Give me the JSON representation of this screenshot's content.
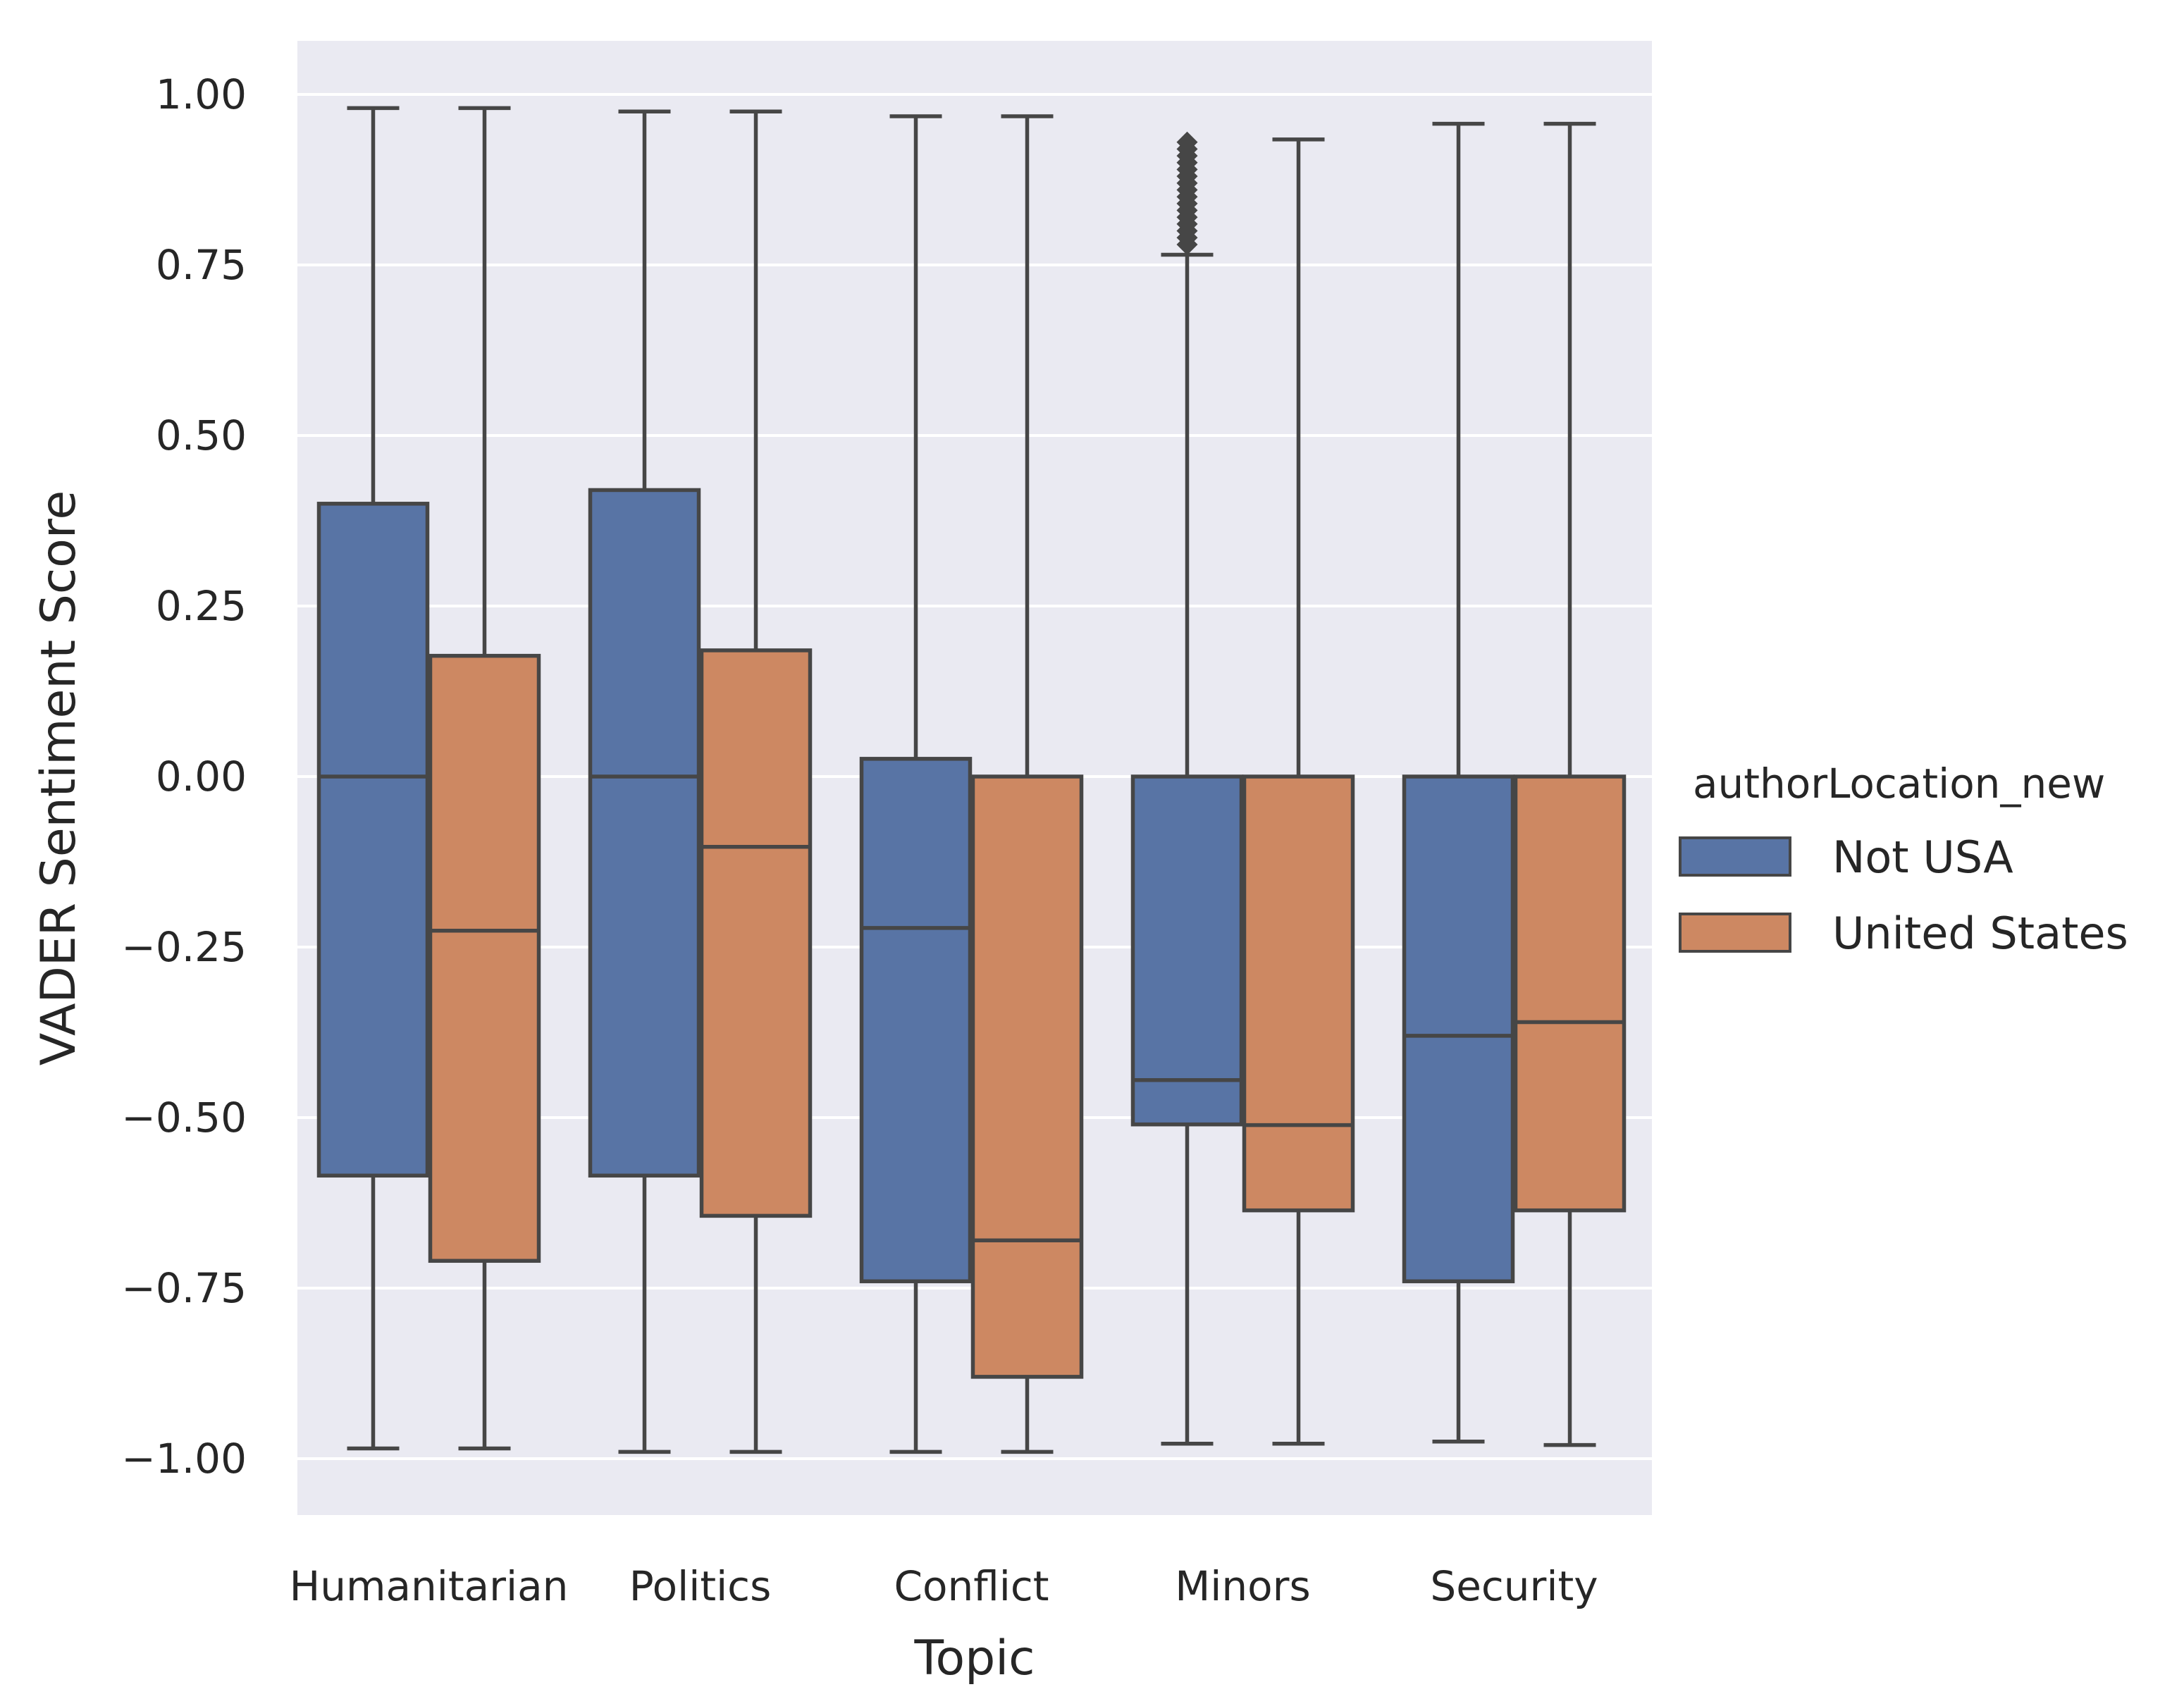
{
  "chart_data": {
    "type": "box",
    "xlabel": "Topic",
    "ylabel": "VADER Sentiment Score",
    "ylim": [
      -1.08,
      1.08
    ],
    "yticks": [
      1.0,
      0.75,
      0.5,
      0.25,
      0.0,
      -0.25,
      -0.5,
      -0.75,
      -1.0
    ],
    "ytick_labels": [
      "1.00",
      "0.75",
      "0.50",
      "0.25",
      "0.00",
      "−0.25",
      "−0.50",
      "−0.75",
      "−1.00"
    ],
    "grid": true,
    "categories": [
      "Humanitarian",
      "Politics",
      "Conflict",
      "Minors",
      "Security"
    ],
    "legend": {
      "title": "authorLocation_new",
      "placement": "right",
      "entries": [
        {
          "label": "Not USA",
          "color": "#5874a5"
        },
        {
          "label": "United States",
          "color": "#cd8862"
        }
      ]
    },
    "series": [
      {
        "color": "#5874a5",
        "boxes": [
          {
            "whislo": -0.985,
            "q1": -0.585,
            "med": 0.0,
            "q3": 0.4,
            "whishi": 0.98
          },
          {
            "whislo": -0.99,
            "q1": -0.585,
            "med": 0.0,
            "q3": 0.42,
            "whishi": 0.975
          },
          {
            "whislo": -0.99,
            "q1": -0.74,
            "med": -0.222,
            "q3": 0.026,
            "whishi": 0.968
          },
          {
            "whislo": -0.978,
            "q1": -0.51,
            "med": -0.445,
            "q3": 0.0,
            "whishi": 0.765,
            "fliers": [
              0.78,
              0.79,
              0.8,
              0.81,
              0.82,
              0.83,
              0.84,
              0.85,
              0.86,
              0.87,
              0.88,
              0.89,
              0.9,
              0.91,
              0.92,
              0.93
            ]
          },
          {
            "whislo": -0.975,
            "q1": -0.74,
            "med": -0.38,
            "q3": 0.0,
            "whishi": 0.957
          }
        ]
      },
      {
        "color": "#cd8862",
        "boxes": [
          {
            "whislo": -0.985,
            "q1": -0.71,
            "med": -0.226,
            "q3": 0.177,
            "whishi": 0.98
          },
          {
            "whislo": -0.99,
            "q1": -0.644,
            "med": -0.103,
            "q3": 0.185,
            "whishi": 0.975
          },
          {
            "whislo": -0.99,
            "q1": -0.88,
            "med": -0.68,
            "q3": 0.0,
            "whishi": 0.968
          },
          {
            "whislo": -0.978,
            "q1": -0.636,
            "med": -0.511,
            "q3": 0.0,
            "whishi": 0.934
          },
          {
            "whislo": -0.98,
            "q1": -0.636,
            "med": -0.36,
            "q3": 0.0,
            "whishi": 0.957
          }
        ]
      }
    ]
  }
}
